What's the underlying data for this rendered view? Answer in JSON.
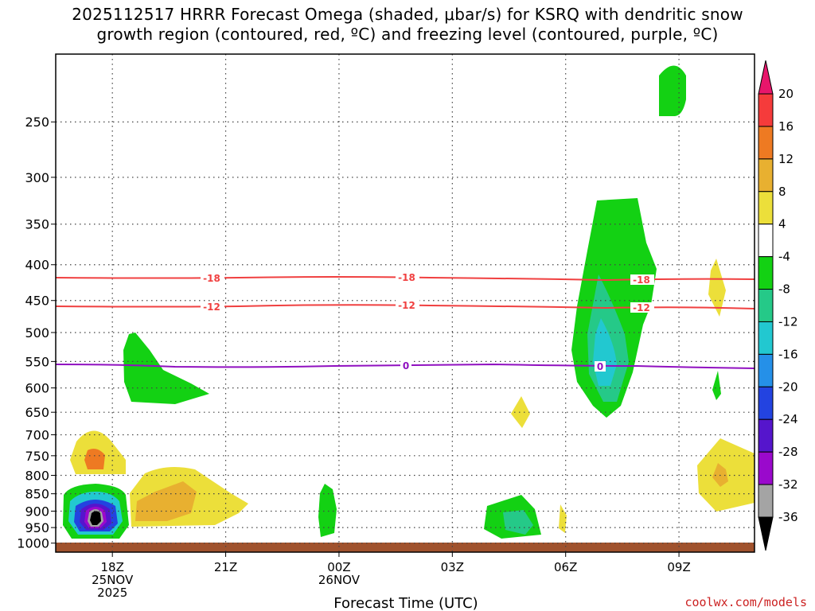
{
  "title_line1": "2025112517 HRRR Forecast Omega (shaded, μbar/s) for KSRQ with dendritic snow",
  "title_line2": "growth region (contoured, red, ºC) and freezing level (contoured, purple, ºC)",
  "xlabel": "Forecast Time (UTC)",
  "credit": "coolwx.com/models",
  "chart_data": {
    "type": "heatmap",
    "yaxis": {
      "scale": "log-pressure",
      "inverted": true,
      "range": [
        1030,
        200
      ],
      "ticks": [
        250,
        300,
        350,
        400,
        450,
        500,
        550,
        600,
        650,
        700,
        750,
        800,
        850,
        900,
        950,
        1000
      ]
    },
    "xaxis": {
      "range": [
        "2025-11-25T16:30Z",
        "2025-11-26T11:00Z"
      ],
      "ticks": [
        {
          "t": "2025-11-25T18Z",
          "label": "18Z",
          "sub1": "25NOV",
          "sub2": "2025"
        },
        {
          "t": "2025-11-25T21Z",
          "label": "21Z",
          "sub1": "",
          "sub2": ""
        },
        {
          "t": "2025-11-26T00Z",
          "label": "00Z",
          "sub1": "26NOV",
          "sub2": ""
        },
        {
          "t": "2025-11-26T03Z",
          "label": "03Z",
          "sub1": "",
          "sub2": ""
        },
        {
          "t": "2025-11-26T06Z",
          "label": "06Z",
          "sub1": "",
          "sub2": ""
        },
        {
          "t": "2025-11-26T09Z",
          "label": "09Z",
          "sub1": "",
          "sub2": ""
        }
      ]
    },
    "grid": "dotted",
    "colorbar": {
      "labels": [
        "20",
        "16",
        "12",
        "8",
        "4",
        "-4",
        "-8",
        "-12",
        "-16",
        "-20",
        "-24",
        "-28",
        "-32",
        "-36"
      ],
      "colors": [
        "#e8166b",
        "#f53b3b",
        "#ee7a22",
        "#e8b030",
        "#ecdf3a",
        "#ffffff",
        "#13d113",
        "#25c988",
        "#22c8d0",
        "#2590e8",
        "#2343e0",
        "#5515cc",
        "#9a09cc",
        "#a4a4a4",
        "#000000"
      ]
    },
    "contours": [
      {
        "value": "-18",
        "color": "#f04040",
        "pressure": 428
      },
      {
        "value": "-12",
        "color": "#f04040",
        "pressure": 470
      },
      {
        "value": "0",
        "color": "#9010c0",
        "pressure": 570
      }
    ],
    "ground_color": "#a0522d"
  }
}
